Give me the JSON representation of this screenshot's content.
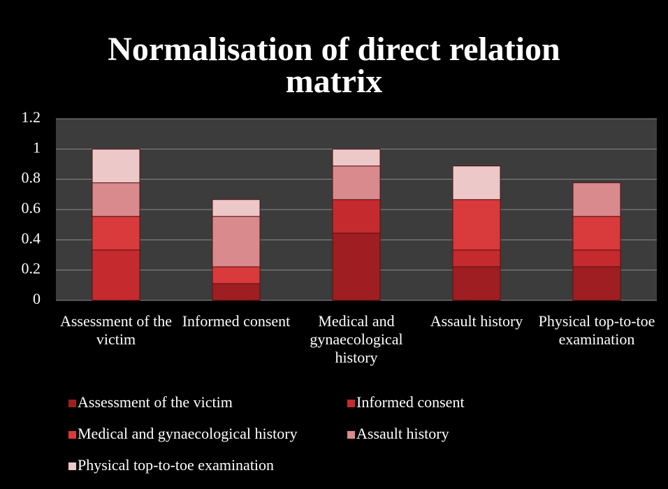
{
  "chart_data": {
    "type": "stacked_bar",
    "title": "Normalisation of  direct relation matrix",
    "categories": [
      "Assessment of the victim",
      "Informed consent",
      "Medical and gynaecological history",
      "Assault history",
      "Physical top-to-toe examination"
    ],
    "series": [
      {
        "name": "Assessment of the victim",
        "color": "#9e1e22",
        "values": [
          0,
          0.111,
          0.444,
          0.222,
          0.222
        ]
      },
      {
        "name": "Informed consent",
        "color": "#c42a2e",
        "values": [
          0.333,
          0,
          0.222,
          0.111,
          0.111
        ]
      },
      {
        "name": "Medical and gynaecological history",
        "color": "#d93a3c",
        "values": [
          0.222,
          0.111,
          0,
          0.333,
          0.222
        ]
      },
      {
        "name": "Assault history",
        "color": "#d98a8c",
        "values": [
          0.222,
          0.333,
          0.222,
          0,
          0.222
        ]
      },
      {
        "name": "Physical top-to-toe examination",
        "color": "#ecc8c8",
        "values": [
          0.222,
          0.111,
          0.111,
          0.222,
          0
        ]
      }
    ],
    "ylim": [
      0,
      1.2
    ],
    "yticks": [
      0,
      0.2,
      0.4,
      0.6,
      0.8,
      1,
      1.2
    ],
    "grid": true,
    "legend": "bottom"
  }
}
